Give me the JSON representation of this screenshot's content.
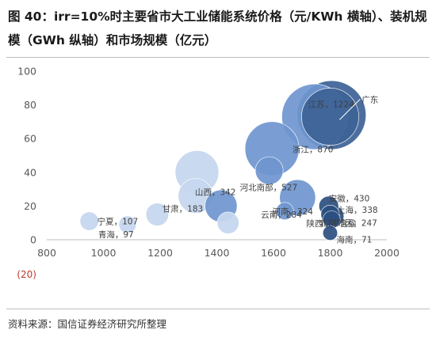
{
  "figure": {
    "title": "图 40：irr=10%时主要省市大工业储能系统价格（元/KWh 横轴）、装机规模（GWh 纵轴）和市场规模（亿元）",
    "source": "资料来源：国信证券经济研究所整理"
  },
  "chart_data": {
    "type": "scatter",
    "subtype": "bubble",
    "title": "",
    "xlabel": "",
    "ylabel": "",
    "xlim": [
      800,
      2000
    ],
    "ylim": [
      0,
      100
    ],
    "x_ticks": [
      800,
      1000,
      1200,
      1400,
      1600,
      1800,
      2000
    ],
    "y_ticks": [
      0,
      20,
      40,
      60,
      80,
      100
    ],
    "extra_y_tick_label": "(20)",
    "grid": false,
    "legend": "none",
    "colors": {
      "light": "#c6d7ee",
      "mid": "#6f96cf",
      "dark": "#3d6296",
      "darkest": "#2b4f80",
      "label": "#404040"
    },
    "points": [
      {
        "name": "宁夏",
        "x": 950,
        "y": 11,
        "value": 40,
        "tone": "light",
        "label": "宁夏，107"
      },
      {
        "name": "青海",
        "x": 1085,
        "y": 9,
        "value": 35,
        "tone": "light",
        "label": "青海，97"
      },
      {
        "name": "",
        "x": 1190,
        "y": 15,
        "value": 60,
        "tone": "light",
        "label": ""
      },
      {
        "name": "甘肃",
        "x": 1325,
        "y": 26,
        "value": 140,
        "tone": "light",
        "label": "甘肃，183"
      },
      {
        "name": "",
        "x": 1330,
        "y": 40,
        "value": 220,
        "tone": "light",
        "label": ""
      },
      {
        "name": "山西",
        "x": 1415,
        "y": 20,
        "value": 120,
        "tone": "mid",
        "label": "山西，342"
      },
      {
        "name": "",
        "x": 1440,
        "y": 10,
        "value": 55,
        "tone": "light",
        "label": ""
      },
      {
        "name": "河北南部",
        "x": 1585,
        "y": 41,
        "value": 90,
        "tone": "mid",
        "label": "河北南部，527"
      },
      {
        "name": "",
        "x": 1595,
        "y": 54,
        "value": 340,
        "tone": "mid",
        "label": ""
      },
      {
        "name": "云南",
        "x": 1640,
        "y": 17,
        "value": 35,
        "tone": "mid",
        "label": "云南，284"
      },
      {
        "name": "河南",
        "x": 1685,
        "y": 25,
        "value": 150,
        "tone": "mid",
        "label": "河南，324"
      },
      {
        "name": "浙江",
        "x": 1745,
        "y": 73,
        "value": 500,
        "tone": "mid",
        "label": "浙江，870"
      },
      {
        "name": "广东",
        "x": 1805,
        "y": 74,
        "value": 550,
        "tone": "dark",
        "label": "广东"
      },
      {
        "name": "江苏",
        "x": 1800,
        "y": 73,
        "value": 380,
        "tone": "dark",
        "label": "江苏，1224"
      },
      {
        "name": "安徽",
        "x": 1795,
        "y": 20,
        "value": 45,
        "tone": "darkest",
        "label": "安徽，430"
      },
      {
        "name": "陕西",
        "x": 1800,
        "y": 15,
        "value": 40,
        "tone": "darkest",
        "label": "陕西（不含榆"
      },
      {
        "name": "上海",
        "x": 1810,
        "y": 14,
        "value": 55,
        "tone": "darkest",
        "label": "上海，338"
      },
      {
        "name": "北京郊区",
        "x": 1805,
        "y": 12,
        "value": 35,
        "tone": "darkest",
        "label": "北京郊区，247"
      },
      {
        "name": "海南",
        "x": 1800,
        "y": 4,
        "value": 25,
        "tone": "darkest",
        "label": "海南，71"
      }
    ]
  }
}
